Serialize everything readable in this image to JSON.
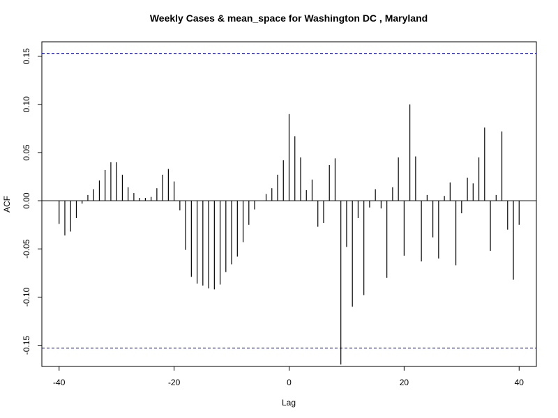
{
  "chart_data": {
    "type": "bar",
    "title": "Weekly Cases & mean_space for Washington DC , Maryland",
    "xlabel": "Lag",
    "ylabel": "ACF",
    "xlim": [
      -43,
      43
    ],
    "ylim": [
      -0.172,
      0.165
    ],
    "x_ticks": [
      -40,
      -20,
      0,
      20,
      40
    ],
    "x_tick_labels": [
      "-40",
      "-20",
      "0",
      "20",
      "40"
    ],
    "y_ticks": [
      -0.15,
      -0.1,
      -0.05,
      0.0,
      0.05,
      0.1,
      0.15
    ],
    "y_tick_labels": [
      "-0.15",
      "-0.10",
      "-0.05",
      "0.00",
      "0.05",
      "0.10",
      "0.15"
    ],
    "confidence_bounds": [
      0.153,
      -0.153
    ],
    "grid": false,
    "legend": "none",
    "colors": {
      "bars": "#000000",
      "bounds": "#0000cc",
      "zero_line": "#000000"
    },
    "x": [
      -40,
      -39,
      -38,
      -37,
      -36,
      -35,
      -34,
      -33,
      -32,
      -31,
      -30,
      -29,
      -28,
      -27,
      -26,
      -25,
      -24,
      -23,
      -22,
      -21,
      -20,
      -19,
      -18,
      -17,
      -16,
      -15,
      -14,
      -13,
      -12,
      -11,
      -10,
      -9,
      -8,
      -7,
      -6,
      -5,
      -4,
      -3,
      -2,
      -1,
      0,
      1,
      2,
      3,
      4,
      5,
      6,
      7,
      8,
      9,
      10,
      11,
      12,
      13,
      14,
      15,
      16,
      17,
      18,
      19,
      20,
      21,
      22,
      23,
      24,
      25,
      26,
      27,
      28,
      29,
      30,
      31,
      32,
      33,
      34,
      35,
      36,
      37,
      38,
      39,
      40
    ],
    "values": [
      -0.024,
      -0.036,
      -0.032,
      -0.018,
      -0.003,
      0.006,
      0.012,
      0.021,
      0.032,
      0.04,
      0.04,
      0.027,
      0.014,
      0.008,
      0.003,
      0.003,
      0.004,
      0.013,
      0.027,
      0.033,
      0.02,
      -0.01,
      -0.051,
      -0.079,
      -0.086,
      -0.088,
      -0.091,
      -0.092,
      -0.087,
      -0.074,
      -0.066,
      -0.058,
      -0.043,
      -0.025,
      -0.009,
      0.0,
      0.007,
      0.013,
      0.027,
      0.042,
      0.09,
      0.067,
      0.045,
      0.011,
      0.022,
      -0.027,
      -0.023,
      0.037,
      0.044,
      -0.17,
      -0.048,
      -0.11,
      -0.018,
      -0.098,
      -0.007,
      0.012,
      -0.008,
      -0.08,
      0.014,
      0.045,
      -0.057,
      0.1,
      0.046,
      -0.063,
      0.006,
      -0.038,
      -0.06,
      0.005,
      0.019,
      -0.067,
      -0.013,
      0.024,
      0.018,
      0.045,
      0.076,
      -0.052,
      0.006,
      0.072,
      -0.03,
      -0.082,
      -0.025
    ]
  }
}
